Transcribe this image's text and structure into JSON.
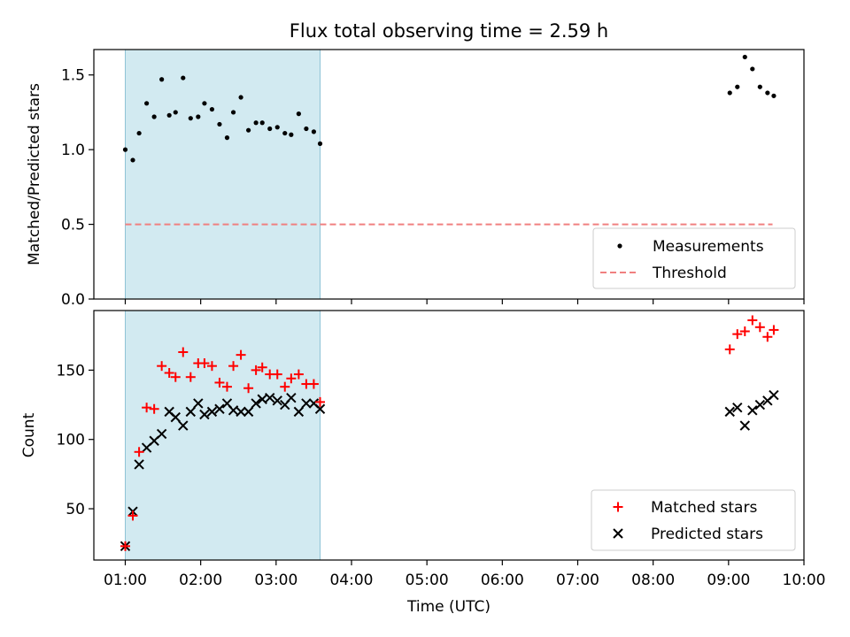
{
  "figure": {
    "title": "Flux total observing time = 2.59 h"
  },
  "colors": {
    "band": "#add8e6",
    "matched": "#ff0000",
    "predicted": "#000000",
    "threshold": "#f08080",
    "measurement": "#000000"
  },
  "chart_data": [
    {
      "type": "scatter",
      "panel": "top",
      "ylabel": "Matched/Predicted stars",
      "ylim": [
        0,
        1.67
      ],
      "yticks": [
        "0.0",
        "0.5",
        "1.0",
        "1.5"
      ],
      "ytick_values": [
        0,
        0.5,
        1.0,
        1.5
      ],
      "highlight_band": [
        "01:00",
        "03:35"
      ],
      "threshold": {
        "value": 0.5,
        "from": "01:00",
        "to": "09:35"
      },
      "legend": {
        "position": "lower right",
        "entries": [
          "Measurements",
          "Threshold"
        ]
      },
      "series": [
        {
          "name": "Measurements",
          "x": [
            "01:00",
            "01:06",
            "01:11",
            "01:17",
            "01:23",
            "01:29",
            "01:35",
            "01:40",
            "01:46",
            "01:52",
            "01:58",
            "02:03",
            "02:09",
            "02:15",
            "02:21",
            "02:26",
            "02:32",
            "02:38",
            "02:44",
            "02:49",
            "02:55",
            "03:01",
            "03:07",
            "03:12",
            "03:18",
            "03:24",
            "03:30",
            "03:35",
            "09:01",
            "09:07",
            "09:13",
            "09:19",
            "09:25",
            "09:31",
            "09:36"
          ],
          "y": [
            1.0,
            0.93,
            1.11,
            1.31,
            1.22,
            1.47,
            1.23,
            1.25,
            1.48,
            1.21,
            1.22,
            1.31,
            1.27,
            1.17,
            1.08,
            1.25,
            1.35,
            1.13,
            1.18,
            1.18,
            1.14,
            1.15,
            1.11,
            1.1,
            1.24,
            1.14,
            1.12,
            1.04,
            1.38,
            1.42,
            1.62,
            1.54,
            1.42,
            1.38,
            1.36
          ]
        }
      ]
    },
    {
      "type": "scatter",
      "panel": "bottom",
      "xlabel": "Time (UTC)",
      "ylabel": "Count",
      "ylim": [
        13,
        193
      ],
      "yticks": [
        "50",
        "100",
        "150"
      ],
      "ytick_values": [
        50,
        100,
        150
      ],
      "xlim": [
        "00:35",
        "10:00"
      ],
      "xticks": [
        "01:00",
        "02:00",
        "03:00",
        "04:00",
        "05:00",
        "06:00",
        "07:00",
        "08:00",
        "09:00",
        "10:00"
      ],
      "highlight_band": [
        "01:00",
        "03:35"
      ],
      "legend": {
        "position": "lower right",
        "entries": [
          "Matched stars",
          "Predicted stars"
        ]
      },
      "series": [
        {
          "name": "Matched stars",
          "x": [
            "01:00",
            "01:06",
            "01:11",
            "01:17",
            "01:23",
            "01:29",
            "01:35",
            "01:40",
            "01:46",
            "01:52",
            "01:58",
            "02:03",
            "02:09",
            "02:15",
            "02:21",
            "02:26",
            "02:32",
            "02:38",
            "02:44",
            "02:49",
            "02:55",
            "03:01",
            "03:07",
            "03:12",
            "03:18",
            "03:24",
            "03:30",
            "03:35",
            "09:01",
            "09:07",
            "09:13",
            "09:19",
            "09:25",
            "09:31",
            "09:36"
          ],
          "y": [
            23,
            45,
            91,
            123,
            122,
            153,
            148,
            145,
            163,
            145,
            155,
            155,
            153,
            141,
            138,
            153,
            161,
            137,
            150,
            152,
            147,
            147,
            138,
            144,
            147,
            140,
            140,
            127,
            165,
            176,
            178,
            186,
            181,
            174,
            179
          ]
        },
        {
          "name": "Predicted stars",
          "x": [
            "01:00",
            "01:06",
            "01:11",
            "01:17",
            "01:23",
            "01:29",
            "01:35",
            "01:40",
            "01:46",
            "01:52",
            "01:58",
            "02:03",
            "02:09",
            "02:15",
            "02:21",
            "02:26",
            "02:32",
            "02:38",
            "02:44",
            "02:49",
            "02:55",
            "03:01",
            "03:07",
            "03:12",
            "03:18",
            "03:24",
            "03:30",
            "03:35",
            "09:01",
            "09:07",
            "09:13",
            "09:19",
            "09:25",
            "09:31",
            "09:36"
          ],
          "y": [
            23,
            48,
            82,
            94,
            99,
            104,
            120,
            116,
            110,
            120,
            126,
            118,
            120,
            122,
            126,
            121,
            120,
            120,
            126,
            129,
            130,
            128,
            125,
            130,
            120,
            126,
            126,
            122,
            120,
            123,
            110,
            121,
            125,
            128,
            132
          ]
        }
      ]
    }
  ],
  "xlabel_text": "Time (UTC)"
}
